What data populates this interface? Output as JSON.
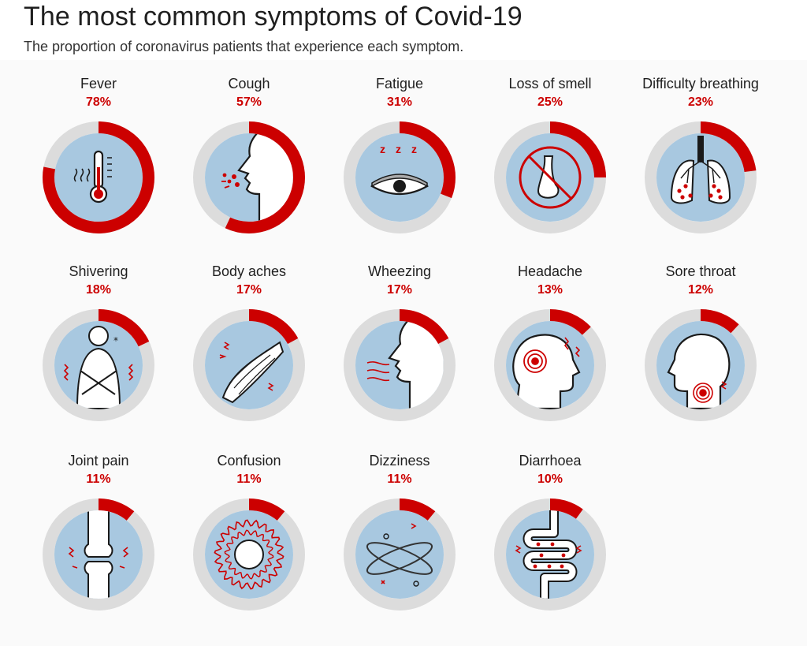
{
  "title": "The most common symptoms of Covid-19",
  "subtitle": "The proportion of coronavirus patients that experience each symptom.",
  "colors": {
    "ring_track": "#dcdcdc",
    "ring_fill": "#cc0000",
    "inner_disc": "#a8c8e0",
    "value_text": "#cc0000",
    "line_art": "#1a1a1a"
  },
  "chart_data": {
    "type": "pie",
    "title": "The most common symptoms of Covid-19",
    "subtitle": "The proportion of coronavirus patients that experience each symptom.",
    "unit": "%",
    "categories": [
      "Fever",
      "Cough",
      "Fatigue",
      "Loss of smell",
      "Difficulty breathing",
      "Shivering",
      "Body aches",
      "Wheezing",
      "Headache",
      "Sore throat",
      "Joint pain",
      "Confusion",
      "Dizziness",
      "Diarrhoea"
    ],
    "values": [
      78,
      57,
      31,
      25,
      23,
      18,
      17,
      17,
      13,
      12,
      11,
      11,
      11,
      10
    ],
    "labels": [
      "78%",
      "57%",
      "31%",
      "25%",
      "23%",
      "18%",
      "17%",
      "17%",
      "13%",
      "12%",
      "11%",
      "11%",
      "11%",
      "10%"
    ],
    "symptoms": [
      {
        "name": "Fever",
        "percent": 78,
        "label": "78%",
        "icon": "thermometer-icon"
      },
      {
        "name": "Cough",
        "percent": 57,
        "label": "57%",
        "icon": "cough-profile-icon"
      },
      {
        "name": "Fatigue",
        "percent": 31,
        "label": "31%",
        "icon": "sleepy-eye-icon"
      },
      {
        "name": "Loss of smell",
        "percent": 25,
        "label": "25%",
        "icon": "crossed-nose-icon"
      },
      {
        "name": "Difficulty breathing",
        "percent": 23,
        "label": "23%",
        "icon": "lungs-icon"
      },
      {
        "name": "Shivering",
        "percent": 18,
        "label": "18%",
        "icon": "shivering-person-icon"
      },
      {
        "name": "Body aches",
        "percent": 17,
        "label": "17%",
        "icon": "muscle-icon"
      },
      {
        "name": "Wheezing",
        "percent": 17,
        "label": "17%",
        "icon": "wheezing-profile-icon"
      },
      {
        "name": "Headache",
        "percent": 13,
        "label": "13%",
        "icon": "headache-icon"
      },
      {
        "name": "Sore throat",
        "percent": 12,
        "label": "12%",
        "icon": "sore-throat-icon"
      },
      {
        "name": "Joint pain",
        "percent": 11,
        "label": "11%",
        "icon": "joint-icon"
      },
      {
        "name": "Confusion",
        "percent": 11,
        "label": "11%",
        "icon": "confusion-spiral-icon"
      },
      {
        "name": "Dizziness",
        "percent": 11,
        "label": "11%",
        "icon": "dizziness-orbit-icon"
      },
      {
        "name": "Diarrhoea",
        "percent": 10,
        "label": "10%",
        "icon": "intestine-icon"
      }
    ]
  }
}
